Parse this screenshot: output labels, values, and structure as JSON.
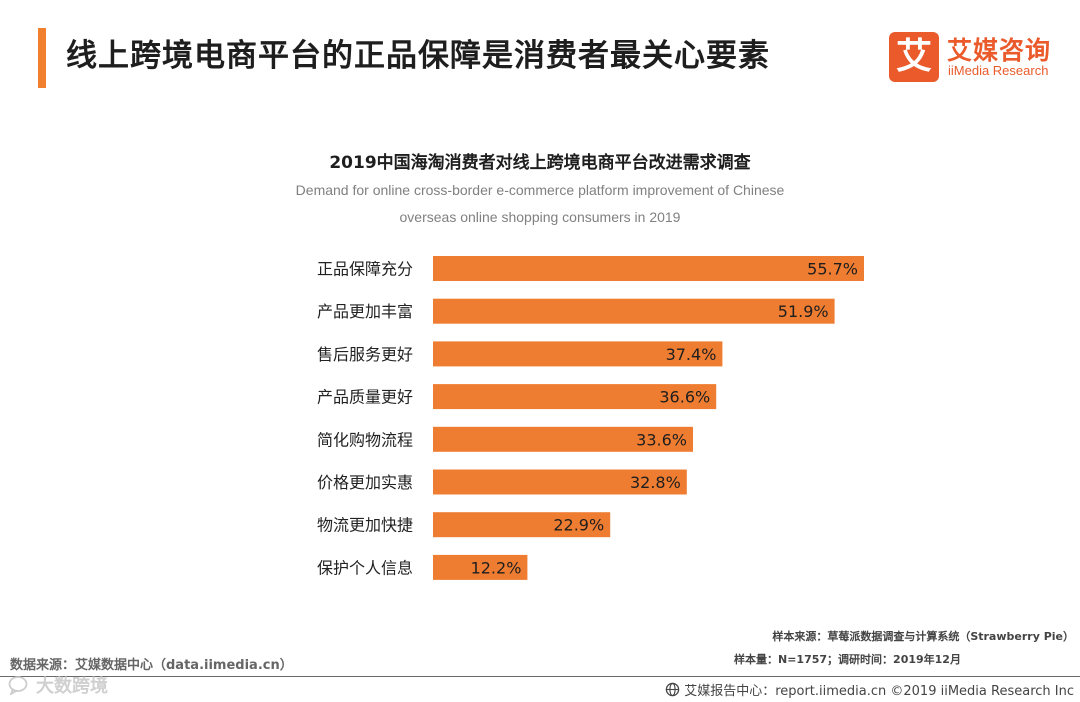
{
  "header": {
    "title": "线上跨境电商平台的正品保障是消费者最关心要素",
    "accent_color": "#f07f2e"
  },
  "logo": {
    "mark": "艾",
    "name_cn": "艾媒咨询",
    "name_en": "iiMedia Research",
    "color": "#ea5a2b"
  },
  "chart_data": {
    "type": "bar",
    "orientation": "horizontal",
    "title": "2019中国海淘消费者对线上跨境电商平台改进需求调查",
    "subtitle": "Demand for online cross-border e-commerce platform improvement of Chinese overseas online shopping consumers in 2019",
    "subtitle_lines": [
      "Demand for online cross-border e-commerce platform improvement of Chinese",
      "overseas online shopping consumers in 2019"
    ],
    "categories": [
      "正品保障充分",
      "产品更加丰富",
      "售后服务更好",
      "产品质量更好",
      "简化购物流程",
      "价格更加实惠",
      "物流更加快捷",
      "保护个人信息"
    ],
    "values": [
      55.7,
      51.9,
      37.4,
      36.6,
      33.6,
      32.8,
      22.9,
      12.2
    ],
    "value_labels": [
      "55.7%",
      "51.9%",
      "37.4%",
      "36.6%",
      "33.6%",
      "32.8%",
      "22.9%",
      "12.2%"
    ],
    "unit": "%",
    "xlim": [
      0,
      100
    ],
    "grid": false,
    "bar_color": "#ef7d31",
    "xlabel": "",
    "ylabel": ""
  },
  "footer": {
    "source": "数据来源：艾媒数据中心（data.iimedia.cn）",
    "sample_source": "样本来源：草莓派数据调查与计算系统（Strawberry Pie）",
    "sample_size": "样本量：N=1757；调研时间：2019年12月",
    "report_center": "艾媒报告中心：report.iimedia.cn  ©2019  iiMedia Research  Inc",
    "watermark": "大数跨境"
  }
}
